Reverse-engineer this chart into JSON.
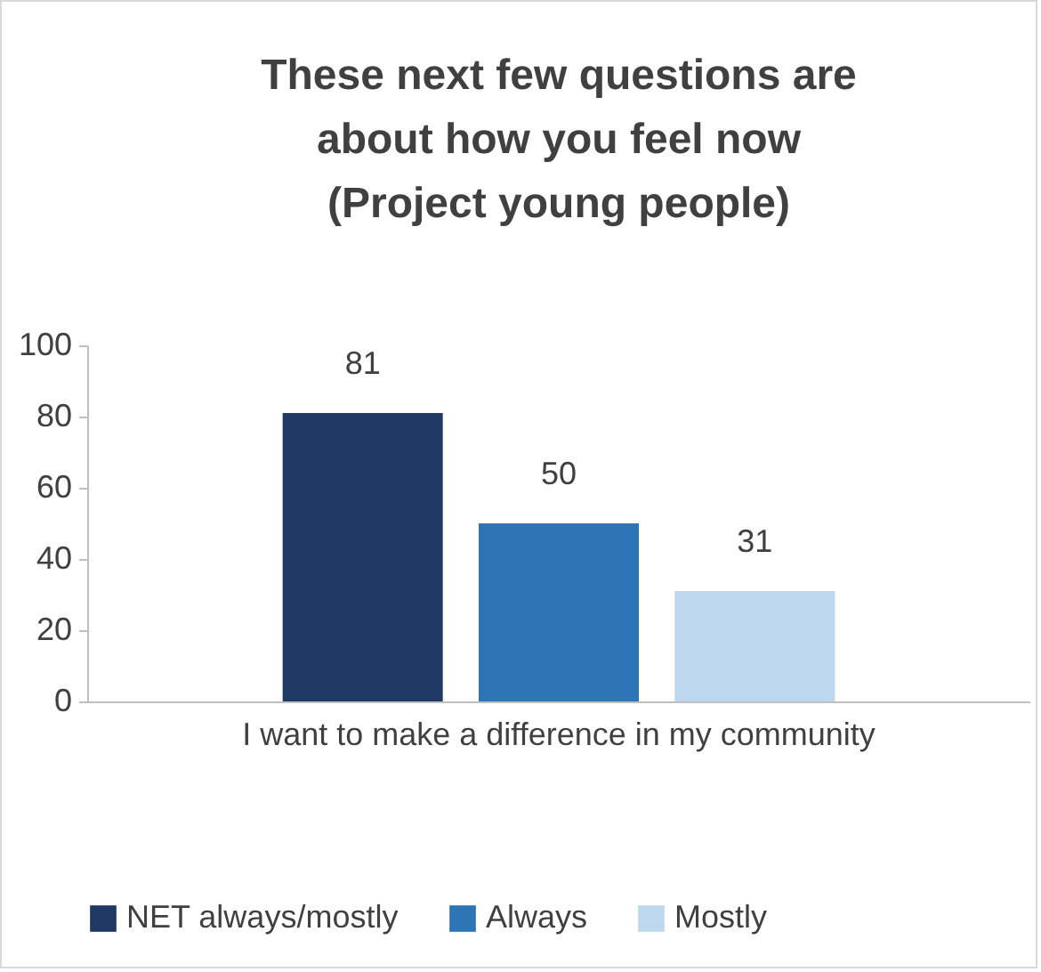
{
  "chart_data": {
    "type": "bar",
    "title": "These next few questions are about how you feel now (Project young people)",
    "categories": [
      "I want to make a difference in my community"
    ],
    "series": [
      {
        "name": "NET always/mostly",
        "color": "#1f3864",
        "values": [
          81
        ]
      },
      {
        "name": "Always",
        "color": "#2e75b6",
        "values": [
          50
        ]
      },
      {
        "name": "Mostly",
        "color": "#bdd7ee",
        "values": [
          31
        ]
      }
    ],
    "ylim": [
      0,
      100
    ],
    "yticks": [
      0,
      20,
      40,
      60,
      80,
      100
    ],
    "grid": false,
    "legend": "bottom",
    "data_labels": true
  }
}
